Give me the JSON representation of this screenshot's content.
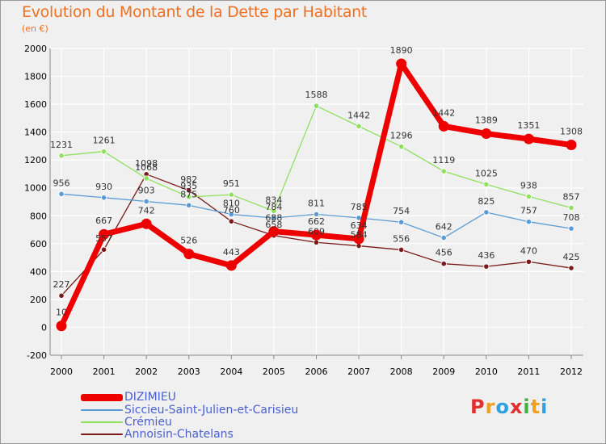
{
  "header": {
    "title": "Evolution du Montant de la Dette par Habitant",
    "subtitle": "(en €)"
  },
  "logo": {
    "text": "Proxiti",
    "colors": [
      "#e03030",
      "#f0a020",
      "#30a0e0",
      "#e03030",
      "#40b040",
      "#f0a020",
      "#30a0e0"
    ]
  },
  "chart_data": {
    "type": "line",
    "title": "Evolution du Montant de la Dette par Habitant",
    "subtitle": "(en €)",
    "xlabel": "",
    "ylabel": "",
    "x": [
      "2000",
      "2001",
      "2002",
      "2003",
      "2004",
      "2005",
      "2006",
      "2007",
      "2008",
      "2009",
      "2010",
      "2011",
      "2012"
    ],
    "ylim": [
      -200,
      2000
    ],
    "yticks": [
      "-200",
      "0",
      "200",
      "400",
      "600",
      "800",
      "1000",
      "1200",
      "1400",
      "1600",
      "1800",
      "2000"
    ],
    "grid": true,
    "legend_position": "bottom-left",
    "series": [
      {
        "name": "DIZIMIEU",
        "color": "#ee0000",
        "values": [
          10,
          667,
          742,
          526,
          443,
          688,
          662,
          634,
          1890,
          1442,
          1389,
          1351,
          1308
        ],
        "labels": [
          "10",
          "667",
          "742",
          "526",
          "443",
          "688",
          "662",
          "634",
          "1890",
          "1442",
          "1389",
          "1351",
          "1308"
        ]
      },
      {
        "name": "Siccieu-Saint-Julien-et-Carisieu",
        "color": "#5b9bd5",
        "values": [
          956,
          930,
          903,
          875,
          810,
          784,
          811,
          785,
          754,
          642,
          825,
          757,
          708
        ],
        "labels": [
          "956",
          "930",
          "903",
          "875",
          "810",
          "784",
          "811",
          "785",
          "754",
          "642",
          "825",
          "757",
          "708"
        ]
      },
      {
        "name": "Crémieu",
        "color": "#90e060",
        "values": [
          1231,
          1261,
          1068,
          935,
          951,
          834,
          1588,
          1442,
          1296,
          1119,
          1025,
          938,
          857
        ],
        "labels": [
          "1231",
          "1261",
          "1068",
          "935",
          "951",
          "834",
          "1588",
          "1442",
          "1296",
          "1119",
          "1025",
          "938",
          "857"
        ]
      },
      {
        "name": "Annoisin-Chatelans",
        "color": "#7a1a1a",
        "values": [
          227,
          557,
          1098,
          982,
          760,
          658,
          609,
          584,
          556,
          456,
          436,
          470,
          425
        ],
        "labels": [
          "227",
          "557",
          "1098",
          "982",
          "760",
          "658",
          "609",
          "584",
          "556",
          "456",
          "436",
          "470",
          "425"
        ]
      }
    ]
  }
}
